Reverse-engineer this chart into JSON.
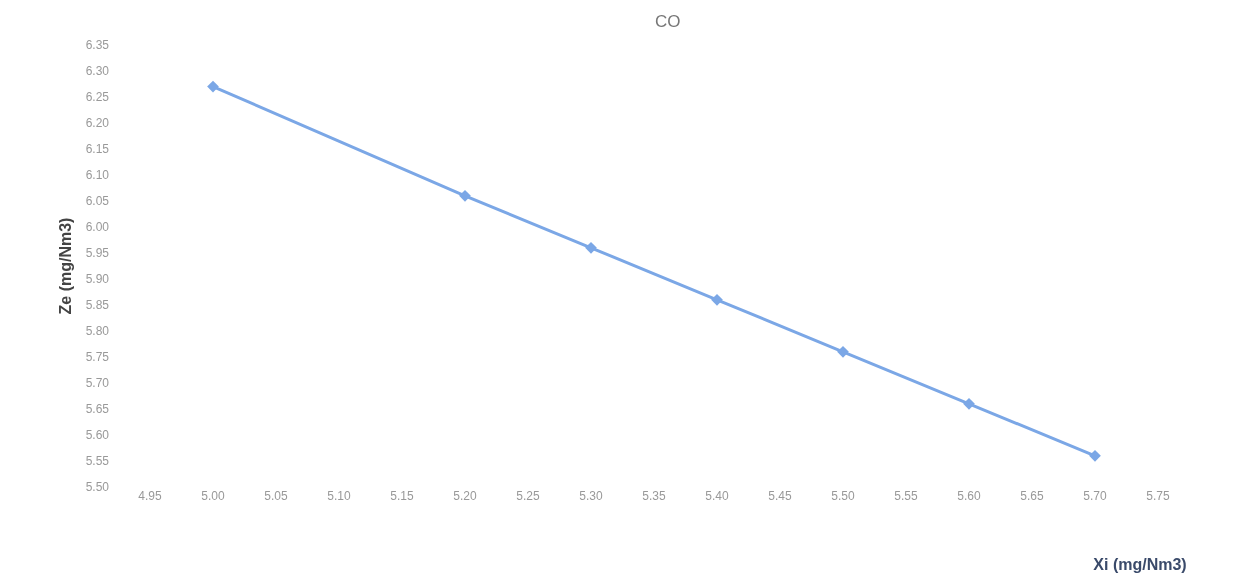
{
  "chart_data": {
    "type": "line",
    "title": "CO",
    "xlabel": "Xi (mg/Nm3)",
    "ylabel": "Ze (mg/Nm3)",
    "x": [
      5.0,
      5.2,
      5.3,
      5.4,
      5.5,
      5.6,
      5.7
    ],
    "series": [
      {
        "color": "#7ba7e6",
        "values": [
          6.27,
          6.06,
          5.96,
          5.86,
          5.76,
          5.66,
          5.56
        ]
      }
    ],
    "xlim": [
      4.95,
      5.75
    ],
    "xticks": [
      4.95,
      {
        "value": 5,
        "label": "5.00"
      },
      5.05,
      {
        "value": 5.1,
        "label": "5.10"
      },
      5.15,
      {
        "value": 5.2,
        "label": "5.20"
      },
      5.25,
      {
        "value": 5.3,
        "label": "5.30"
      },
      5.35,
      {
        "value": 5.4,
        "label": "5.40"
      },
      5.45,
      {
        "value": 5.5,
        "label": "5.50"
      },
      5.55,
      {
        "value": 5.6,
        "label": "5.60"
      },
      5.65,
      {
        "value": 5.7,
        "label": "5.70"
      },
      5.75
    ],
    "ylim": [
      5.5,
      6.35
    ],
    "yticks": [
      {
        "value": 5.5,
        "label": "5.50"
      },
      5.55,
      {
        "value": 5.6,
        "label": "5.60"
      },
      5.65,
      {
        "value": 5.7,
        "label": "5.70"
      },
      5.75,
      {
        "value": 5.8,
        "label": "5.80"
      },
      5.85,
      {
        "value": 5.9,
        "label": "5.90"
      },
      5.95,
      {
        "value": 6,
        "label": "6.00"
      },
      6.05,
      {
        "value": 6.1,
        "label": "6.10"
      },
      6.15,
      {
        "value": 6.2,
        "label": "6.20"
      },
      6.25,
      {
        "value": 6.3,
        "label": "6.30"
      },
      6.35
    ],
    "grid": false,
    "marker": "diamond",
    "line_style": "solid"
  }
}
